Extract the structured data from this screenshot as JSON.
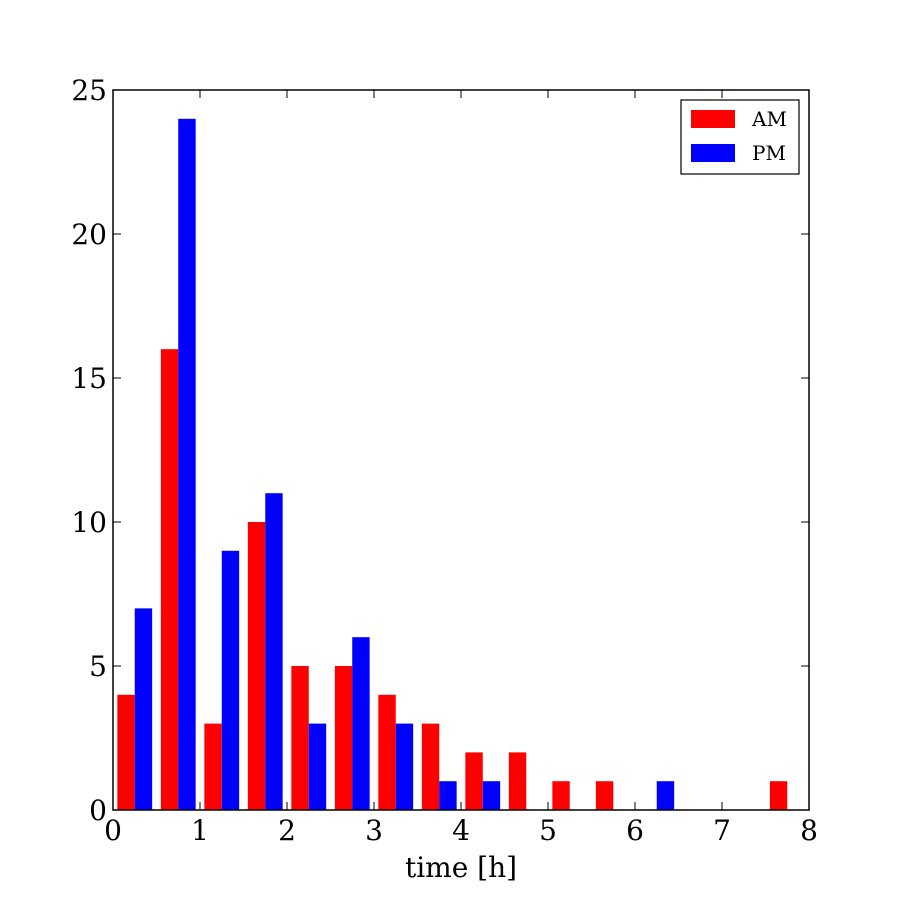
{
  "chart_data": {
    "type": "bar",
    "title": "",
    "xlabel": "time [h]",
    "ylabel": "",
    "bin_edges": [
      0,
      0.5,
      1,
      1.5,
      2,
      2.5,
      3,
      3.5,
      4,
      4.5,
      5,
      5.5,
      6,
      6.5,
      7,
      7.5,
      8
    ],
    "series": [
      {
        "name": "AM",
        "color": "#ff0000",
        "values": [
          4,
          16,
          3,
          10,
          5,
          5,
          4,
          3,
          2,
          2,
          1,
          1,
          0,
          0,
          0,
          1
        ]
      },
      {
        "name": "PM",
        "color": "#0000ff",
        "values": [
          7,
          24,
          9,
          11,
          3,
          6,
          3,
          1,
          1,
          0,
          0,
          0,
          1,
          0,
          0,
          0
        ]
      }
    ],
    "xlim": [
      0,
      8
    ],
    "ylim": [
      0,
      25
    ],
    "xticks": [
      "0",
      "1",
      "2",
      "3",
      "4",
      "5",
      "6",
      "7",
      "8"
    ],
    "yticks": [
      "0",
      "5",
      "10",
      "15",
      "20",
      "25"
    ],
    "grid": false,
    "legend": {
      "placement": "top-right",
      "entries": [
        "AM",
        "PM"
      ]
    }
  }
}
